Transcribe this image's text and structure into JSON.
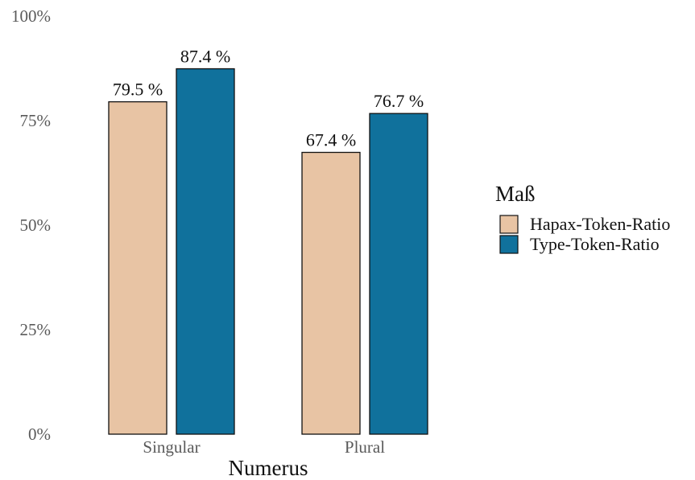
{
  "chart_data": {
    "type": "bar",
    "categories": [
      "Singular",
      "Plural"
    ],
    "series": [
      {
        "name": "Hapax-Token-Ratio",
        "values": [
          79.5,
          67.4
        ],
        "color": "#e8c4a4",
        "labels": [
          "79.5 %",
          "67.4 %"
        ]
      },
      {
        "name": "Type-Token-Ratio",
        "values": [
          87.4,
          76.7
        ],
        "color": "#10719c",
        "labels": [
          "87.4 %",
          "76.7 %"
        ]
      }
    ],
    "xlabel": "Numerus",
    "ylabel": "",
    "ylim": [
      0,
      100
    ],
    "yticks": [
      0,
      25,
      50,
      75,
      100
    ],
    "ytick_labels": [
      "0%",
      "25%",
      "50%",
      "75%",
      "100%"
    ],
    "grid": false,
    "legend": {
      "title": "Maß",
      "position": "right"
    }
  }
}
